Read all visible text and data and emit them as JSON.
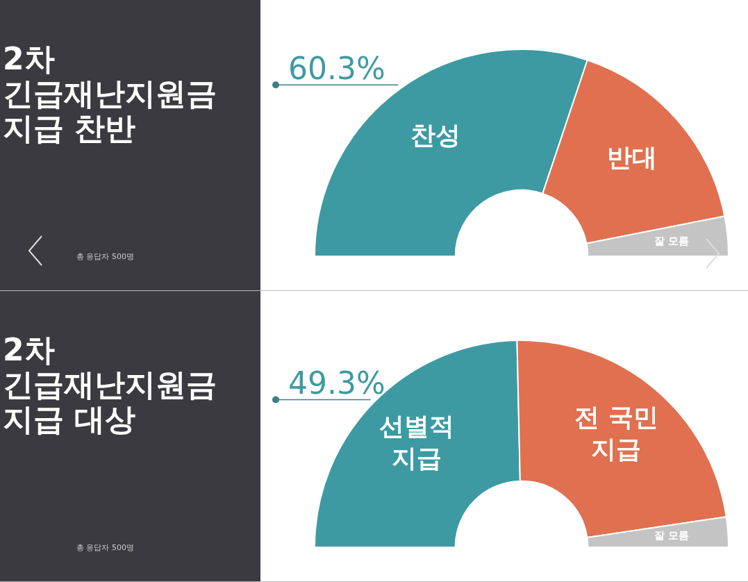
{
  "chart_data": [
    {
      "type": "donut",
      "title": "2차\n긴급재난지원금\n지급 찬반",
      "annotations": [
        "총 응답자 500명"
      ],
      "categories": [
        "찬성",
        "반대",
        "잘 모름"
      ],
      "values": [
        60.3,
        33.5,
        6.2
      ],
      "colors": [
        "#3d9aa2",
        "#e0704f",
        "#c4c4c4"
      ],
      "value_labels": [
        "60.3%",
        null,
        null
      ]
    },
    {
      "type": "donut",
      "title": "2차\n긴급재난지원금\n지급 대상",
      "annotations": [
        "총 응답자 500명"
      ],
      "categories": [
        "선별적 지급",
        "전 국민 지급",
        "잘 모름"
      ],
      "values": [
        49.3,
        46.0,
        4.7
      ],
      "colors": [
        "#3d9aa2",
        "#e0704f",
        "#c4c4c4"
      ],
      "value_labels": [
        "49.3%",
        null,
        null
      ]
    }
  ]
}
